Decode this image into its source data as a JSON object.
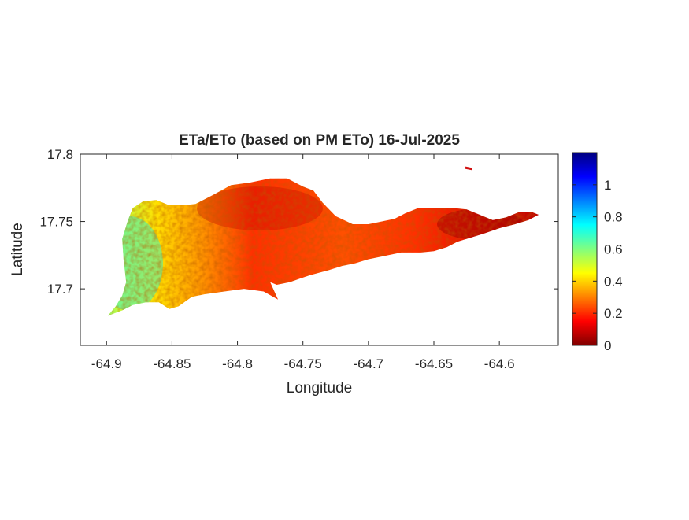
{
  "figure": {
    "title": "ETa/ETo (based on PM ETo) 16-Jul-2025",
    "xlabel": "Longitude",
    "ylabel": "Latitude"
  },
  "chart_data": {
    "type": "heatmap",
    "title": "ETa/ETo (based on PM ETo) 16-Jul-2025",
    "xlabel": "Longitude",
    "ylabel": "Latitude",
    "xlim": [
      -64.92,
      -64.555
    ],
    "ylim": [
      17.658,
      17.8
    ],
    "x_ticks": [
      -64.9,
      -64.85,
      -64.8,
      -64.75,
      -64.7,
      -64.65,
      -64.6
    ],
    "x_tick_labels": [
      "-64.9",
      "-64.85",
      "-64.8",
      "-64.75",
      "-64.7",
      "-64.65",
      "-64.6"
    ],
    "y_ticks": [
      17.7,
      17.75,
      17.8
    ],
    "y_tick_labels": [
      "17.7",
      "17.75",
      "17.8"
    ],
    "colormap": "jet",
    "clim": [
      0,
      1.2
    ],
    "colorbar_ticks": [
      0,
      0.2,
      0.4,
      0.6,
      0.8,
      1
    ],
    "colorbar_tick_labels": [
      "0",
      "0.2",
      "0.4",
      "0.6",
      "0.8",
      "1"
    ],
    "color_stops": [
      "#800000",
      "#ff0000",
      "#ff8000",
      "#ffff00",
      "#80ff80",
      "#00ffff",
      "#0080ff",
      "#0000ff",
      "#000080"
    ],
    "island_outline": [
      [
        -64.899,
        17.68
      ],
      [
        -64.893,
        17.687
      ],
      [
        -64.888,
        17.695
      ],
      [
        -64.885,
        17.705
      ],
      [
        -64.887,
        17.722
      ],
      [
        -64.888,
        17.737
      ],
      [
        -64.884,
        17.75
      ],
      [
        -64.88,
        17.76
      ],
      [
        -64.872,
        17.765
      ],
      [
        -64.862,
        17.766
      ],
      [
        -64.852,
        17.762
      ],
      [
        -64.842,
        17.762
      ],
      [
        -64.832,
        17.763
      ],
      [
        -64.818,
        17.77
      ],
      [
        -64.805,
        17.777
      ],
      [
        -64.79,
        17.779
      ],
      [
        -64.775,
        17.782
      ],
      [
        -64.762,
        17.782
      ],
      [
        -64.75,
        17.776
      ],
      [
        -64.742,
        17.773
      ],
      [
        -64.735,
        17.764
      ],
      [
        -64.725,
        17.754
      ],
      [
        -64.712,
        17.748
      ],
      [
        -64.7,
        17.748
      ],
      [
        -64.69,
        17.75
      ],
      [
        -64.68,
        17.752
      ],
      [
        -64.672,
        17.756
      ],
      [
        -64.662,
        17.76
      ],
      [
        -64.648,
        17.76
      ],
      [
        -64.635,
        17.76
      ],
      [
        -64.625,
        17.759
      ],
      [
        -64.615,
        17.755
      ],
      [
        -64.605,
        17.751
      ],
      [
        -64.595,
        17.753
      ],
      [
        -64.585,
        17.757
      ],
      [
        -64.575,
        17.757
      ],
      [
        -64.57,
        17.755
      ],
      [
        -64.578,
        17.751
      ],
      [
        -64.588,
        17.748
      ],
      [
        -64.6,
        17.745
      ],
      [
        -64.612,
        17.741
      ],
      [
        -64.622,
        17.738
      ],
      [
        -64.632,
        17.735
      ],
      [
        -64.64,
        17.731
      ],
      [
        -64.65,
        17.728
      ],
      [
        -64.66,
        17.727
      ],
      [
        -64.675,
        17.727
      ],
      [
        -64.69,
        17.724
      ],
      [
        -64.7,
        17.722
      ],
      [
        -64.71,
        17.719
      ],
      [
        -64.72,
        17.717
      ],
      [
        -64.73,
        17.714
      ],
      [
        -64.745,
        17.71
      ],
      [
        -64.76,
        17.705
      ],
      [
        -64.77,
        17.703
      ],
      [
        -64.775,
        17.705
      ],
      [
        -64.769,
        17.692
      ],
      [
        -64.78,
        17.698
      ],
      [
        -64.795,
        17.7
      ],
      [
        -64.81,
        17.698
      ],
      [
        -64.825,
        17.696
      ],
      [
        -64.835,
        17.694
      ],
      [
        -64.845,
        17.687
      ],
      [
        -64.852,
        17.685
      ],
      [
        -64.86,
        17.69
      ],
      [
        -64.87,
        17.69
      ],
      [
        -64.88,
        17.688
      ],
      [
        -64.888,
        17.684
      ]
    ],
    "islet": [
      [
        -64.626,
        17.79
      ],
      [
        -64.621,
        17.789
      ]
    ]
  }
}
